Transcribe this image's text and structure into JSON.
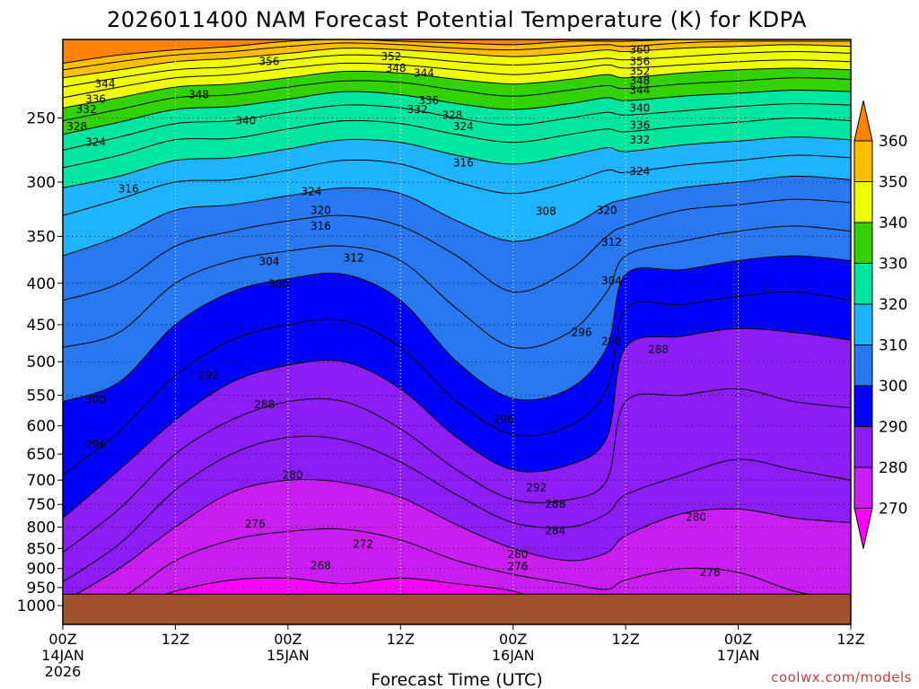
{
  "chart_data": {
    "type": "heatmap",
    "title": "2026011400 NAM Forecast Potential Temperature (K) for KDPA",
    "xlabel": "Forecast Time (UTC)",
    "ylabel": "",
    "credit": "coolwx.com/models",
    "y_ticks": [
      250,
      300,
      350,
      400,
      450,
      500,
      550,
      600,
      650,
      700,
      750,
      800,
      850,
      900,
      950,
      1000
    ],
    "ylim": [
      1000,
      200
    ],
    "x_ticks": [
      {
        "hour": 0,
        "label": "00Z",
        "line2": "14JAN",
        "line3": "2026"
      },
      {
        "hour": 12,
        "label": "12Z",
        "line2": "",
        "line3": ""
      },
      {
        "hour": 24,
        "label": "00Z",
        "line2": "15JAN",
        "line3": ""
      },
      {
        "hour": 36,
        "label": "12Z",
        "line2": "",
        "line3": ""
      },
      {
        "hour": 48,
        "label": "00Z",
        "line2": "16JAN",
        "line3": ""
      },
      {
        "hour": 60,
        "label": "12Z",
        "line2": "",
        "line3": ""
      },
      {
        "hour": 72,
        "label": "00Z",
        "line2": "17JAN",
        "line3": ""
      },
      {
        "hour": 84,
        "label": "12Z",
        "line2": "",
        "line3": ""
      }
    ],
    "xlim": [
      0,
      84
    ],
    "surface_pressure_hpa": 968,
    "colorbar": {
      "levels": [
        270,
        280,
        290,
        300,
        310,
        320,
        330,
        340,
        350,
        360
      ],
      "colors": [
        "#ff00ff",
        "#c81ef0",
        "#8c1ef5",
        "#0000ff",
        "#2878f0",
        "#1eb4ff",
        "#00e6a0",
        "#32d200",
        "#f0ff00",
        "#ffbe00",
        "#ff8200"
      ],
      "labels": [
        "270",
        "280",
        "290",
        "300",
        "310",
        "320",
        "330",
        "340",
        "350",
        "360"
      ]
    },
    "hours": [
      0,
      6,
      12,
      18,
      24,
      30,
      36,
      42,
      48,
      54,
      58,
      60,
      66,
      72,
      78,
      84
    ],
    "isentropes": [
      {
        "theta": 272,
        "p": [
          1010,
          1010,
          960,
          930,
          925,
          940,
          925,
          940,
          960,
          1010,
          1010,
          1010,
          1010,
          1010,
          1010,
          1010
        ]
      },
      {
        "theta": 276,
        "p": [
          1010,
          980,
          880,
          830,
          810,
          805,
          830,
          880,
          915,
          940,
          955,
          930,
          900,
          910,
          960,
          990
        ]
      },
      {
        "theta": 280,
        "p": [
          990,
          900,
          800,
          725,
          700,
          705,
          735,
          795,
          850,
          880,
          860,
          820,
          770,
          760,
          780,
          790
        ]
      },
      {
        "theta": 284,
        "p": [
          935,
          840,
          720,
          650,
          620,
          625,
          665,
          730,
          790,
          800,
          770,
          730,
          690,
          660,
          680,
          700
        ]
      },
      {
        "theta": 288,
        "p": [
          860,
          760,
          650,
          590,
          560,
          560,
          605,
          680,
          740,
          740,
          700,
          560,
          550,
          540,
          560,
          570
        ]
      },
      {
        "theta": 292,
        "p": [
          780,
          680,
          590,
          530,
          505,
          500,
          540,
          620,
          680,
          670,
          620,
          480,
          465,
          455,
          460,
          470
        ]
      },
      {
        "theta": 296,
        "p": [
          690,
          610,
          520,
          470,
          450,
          445,
          480,
          560,
          615,
          600,
          540,
          430,
          425,
          415,
          410,
          420
        ]
      },
      {
        "theta": 300,
        "p": [
          560,
          530,
          450,
          410,
          395,
          390,
          420,
          500,
          555,
          540,
          480,
          390,
          385,
          375,
          370,
          375
        ]
      },
      {
        "theta": 304,
        "p": [
          480,
          460,
          400,
          375,
          365,
          360,
          375,
          430,
          480,
          460,
          410,
          370,
          355,
          345,
          340,
          345
        ]
      },
      {
        "theta": 308,
        "p": [
          420,
          400,
          360,
          345,
          335,
          330,
          340,
          370,
          410,
          385,
          350,
          340,
          325,
          320,
          315,
          318
        ]
      },
      {
        "theta": 312,
        "p": [
          370,
          350,
          325,
          320,
          312,
          305,
          310,
          335,
          355,
          340,
          320,
          315,
          305,
          300,
          295,
          298
        ]
      },
      {
        "theta": 316,
        "p": [
          330,
          315,
          300,
          298,
          290,
          282,
          285,
          300,
          310,
          300,
          290,
          292,
          286,
          282,
          278,
          280
        ]
      },
      {
        "theta": 320,
        "p": [
          305,
          295,
          282,
          280,
          273,
          266,
          268,
          278,
          285,
          278,
          272,
          275,
          270,
          267,
          264,
          266
        ]
      },
      {
        "theta": 324,
        "p": [
          288,
          278,
          266,
          265,
          258,
          252,
          254,
          262,
          268,
          262,
          258,
          260,
          256,
          253,
          250,
          252
        ]
      },
      {
        "theta": 328,
        "p": [
          274,
          264,
          254,
          252,
          246,
          241,
          243,
          250,
          255,
          250,
          246,
          248,
          245,
          242,
          240,
          241
        ]
      },
      {
        "theta": 332,
        "p": [
          262,
          253,
          244,
          242,
          237,
          232,
          234,
          240,
          244,
          240,
          236,
          238,
          235,
          233,
          231,
          232
        ]
      },
      {
        "theta": 336,
        "p": [
          252,
          244,
          236,
          234,
          229,
          225,
          226,
          231,
          235,
          231,
          228,
          230,
          227,
          225,
          223,
          224
        ]
      },
      {
        "theta": 340,
        "p": [
          243,
          236,
          229,
          227,
          223,
          219,
          220,
          224,
          227,
          224,
          221,
          223,
          220,
          218,
          217,
          218
        ]
      },
      {
        "theta": 344,
        "p": [
          236,
          229,
          223,
          221,
          217,
          214,
          215,
          218,
          221,
          218,
          215,
          217,
          215,
          213,
          212,
          213
        ]
      },
      {
        "theta": 348,
        "p": [
          229,
          223,
          218,
          216,
          212,
          209,
          210,
          213,
          215,
          213,
          211,
          212,
          210,
          208,
          207,
          208
        ]
      },
      {
        "theta": 352,
        "p": [
          223,
          218,
          213,
          211,
          208,
          205,
          206,
          208,
          210,
          208,
          206,
          207,
          205,
          204,
          203,
          204
        ]
      },
      {
        "theta": 356,
        "p": [
          218,
          213,
          209,
          207,
          204,
          202,
          203,
          205,
          206,
          204,
          203,
          204,
          202,
          201,
          201,
          201
        ]
      },
      {
        "theta": 360,
        "p": [
          214,
          209,
          206,
          204,
          201,
          200,
          201,
          202,
          203,
          201,
          201,
          201,
          200,
          200,
          200,
          200
        ]
      }
    ],
    "contour_labels": [
      {
        "text": "344",
        "hour": 4.5,
        "p": 227
      },
      {
        "text": "356",
        "hour": 22.0,
        "p": 213
      },
      {
        "text": "352",
        "hour": 35.0,
        "p": 210
      },
      {
        "text": "348",
        "hour": 35.5,
        "p": 217
      },
      {
        "text": "344",
        "hour": 38.5,
        "p": 220
      },
      {
        "text": "360",
        "hour": 61.5,
        "p": 206
      },
      {
        "text": "356",
        "hour": 61.5,
        "p": 213
      },
      {
        "text": "352",
        "hour": 61.5,
        "p": 219
      },
      {
        "text": "348",
        "hour": 61.5,
        "p": 225
      },
      {
        "text": "344",
        "hour": 61.5,
        "p": 231
      },
      {
        "text": "348",
        "hour": 14.5,
        "p": 234
      },
      {
        "text": "336",
        "hour": 3.5,
        "p": 237
      },
      {
        "text": "332",
        "hour": 2.5,
        "p": 244
      },
      {
        "text": "340",
        "hour": 19.5,
        "p": 252
      },
      {
        "text": "336",
        "hour": 39.0,
        "p": 238
      },
      {
        "text": "332",
        "hour": 37.8,
        "p": 244
      },
      {
        "text": "328",
        "hour": 41.5,
        "p": 248
      },
      {
        "text": "324",
        "hour": 42.7,
        "p": 256
      },
      {
        "text": "340",
        "hour": 61.5,
        "p": 243
      },
      {
        "text": "336",
        "hour": 61.5,
        "p": 255
      },
      {
        "text": "332",
        "hour": 61.5,
        "p": 266
      },
      {
        "text": "328",
        "hour": 1.5,
        "p": 256
      },
      {
        "text": "324",
        "hour": 3.5,
        "p": 268
      },
      {
        "text": "316",
        "hour": 42.7,
        "p": 284
      },
      {
        "text": "324",
        "hour": 61.5,
        "p": 291
      },
      {
        "text": "316",
        "hour": 7.0,
        "p": 306
      },
      {
        "text": "324",
        "hour": 26.5,
        "p": 308
      },
      {
        "text": "320",
        "hour": 27.5,
        "p": 325
      },
      {
        "text": "316",
        "hour": 27.5,
        "p": 340
      },
      {
        "text": "308",
        "hour": 51.5,
        "p": 326
      },
      {
        "text": "320",
        "hour": 58.0,
        "p": 325
      },
      {
        "text": "312",
        "hour": 31.0,
        "p": 372
      },
      {
        "text": "312",
        "hour": 58.5,
        "p": 356
      },
      {
        "text": "304",
        "hour": 22.0,
        "p": 376
      },
      {
        "text": "304",
        "hour": 58.5,
        "p": 397
      },
      {
        "text": "300",
        "hour": 23.0,
        "p": 401
      },
      {
        "text": "296",
        "hour": 55.3,
        "p": 460
      },
      {
        "text": "292",
        "hour": 58.5,
        "p": 472
      },
      {
        "text": "288",
        "hour": 63.5,
        "p": 483
      },
      {
        "text": "292",
        "hour": 15.5,
        "p": 520
      },
      {
        "text": "300",
        "hour": 3.5,
        "p": 557
      },
      {
        "text": "288",
        "hour": 21.5,
        "p": 565
      },
      {
        "text": "296",
        "hour": 47.0,
        "p": 589
      },
      {
        "text": "296",
        "hour": 3.5,
        "p": 632
      },
      {
        "text": "280",
        "hour": 24.5,
        "p": 690
      },
      {
        "text": "292",
        "hour": 50.5,
        "p": 715
      },
      {
        "text": "288",
        "hour": 52.5,
        "p": 750
      },
      {
        "text": "280",
        "hour": 67.5,
        "p": 778
      },
      {
        "text": "276",
        "hour": 20.5,
        "p": 793
      },
      {
        "text": "284",
        "hour": 52.5,
        "p": 808
      },
      {
        "text": "272",
        "hour": 32.0,
        "p": 840
      },
      {
        "text": "280",
        "hour": 48.5,
        "p": 865
      },
      {
        "text": "276",
        "hour": 48.5,
        "p": 895
      },
      {
        "text": "268",
        "hour": 27.5,
        "p": 893
      },
      {
        "text": "276",
        "hour": 69.0,
        "p": 910
      }
    ]
  }
}
